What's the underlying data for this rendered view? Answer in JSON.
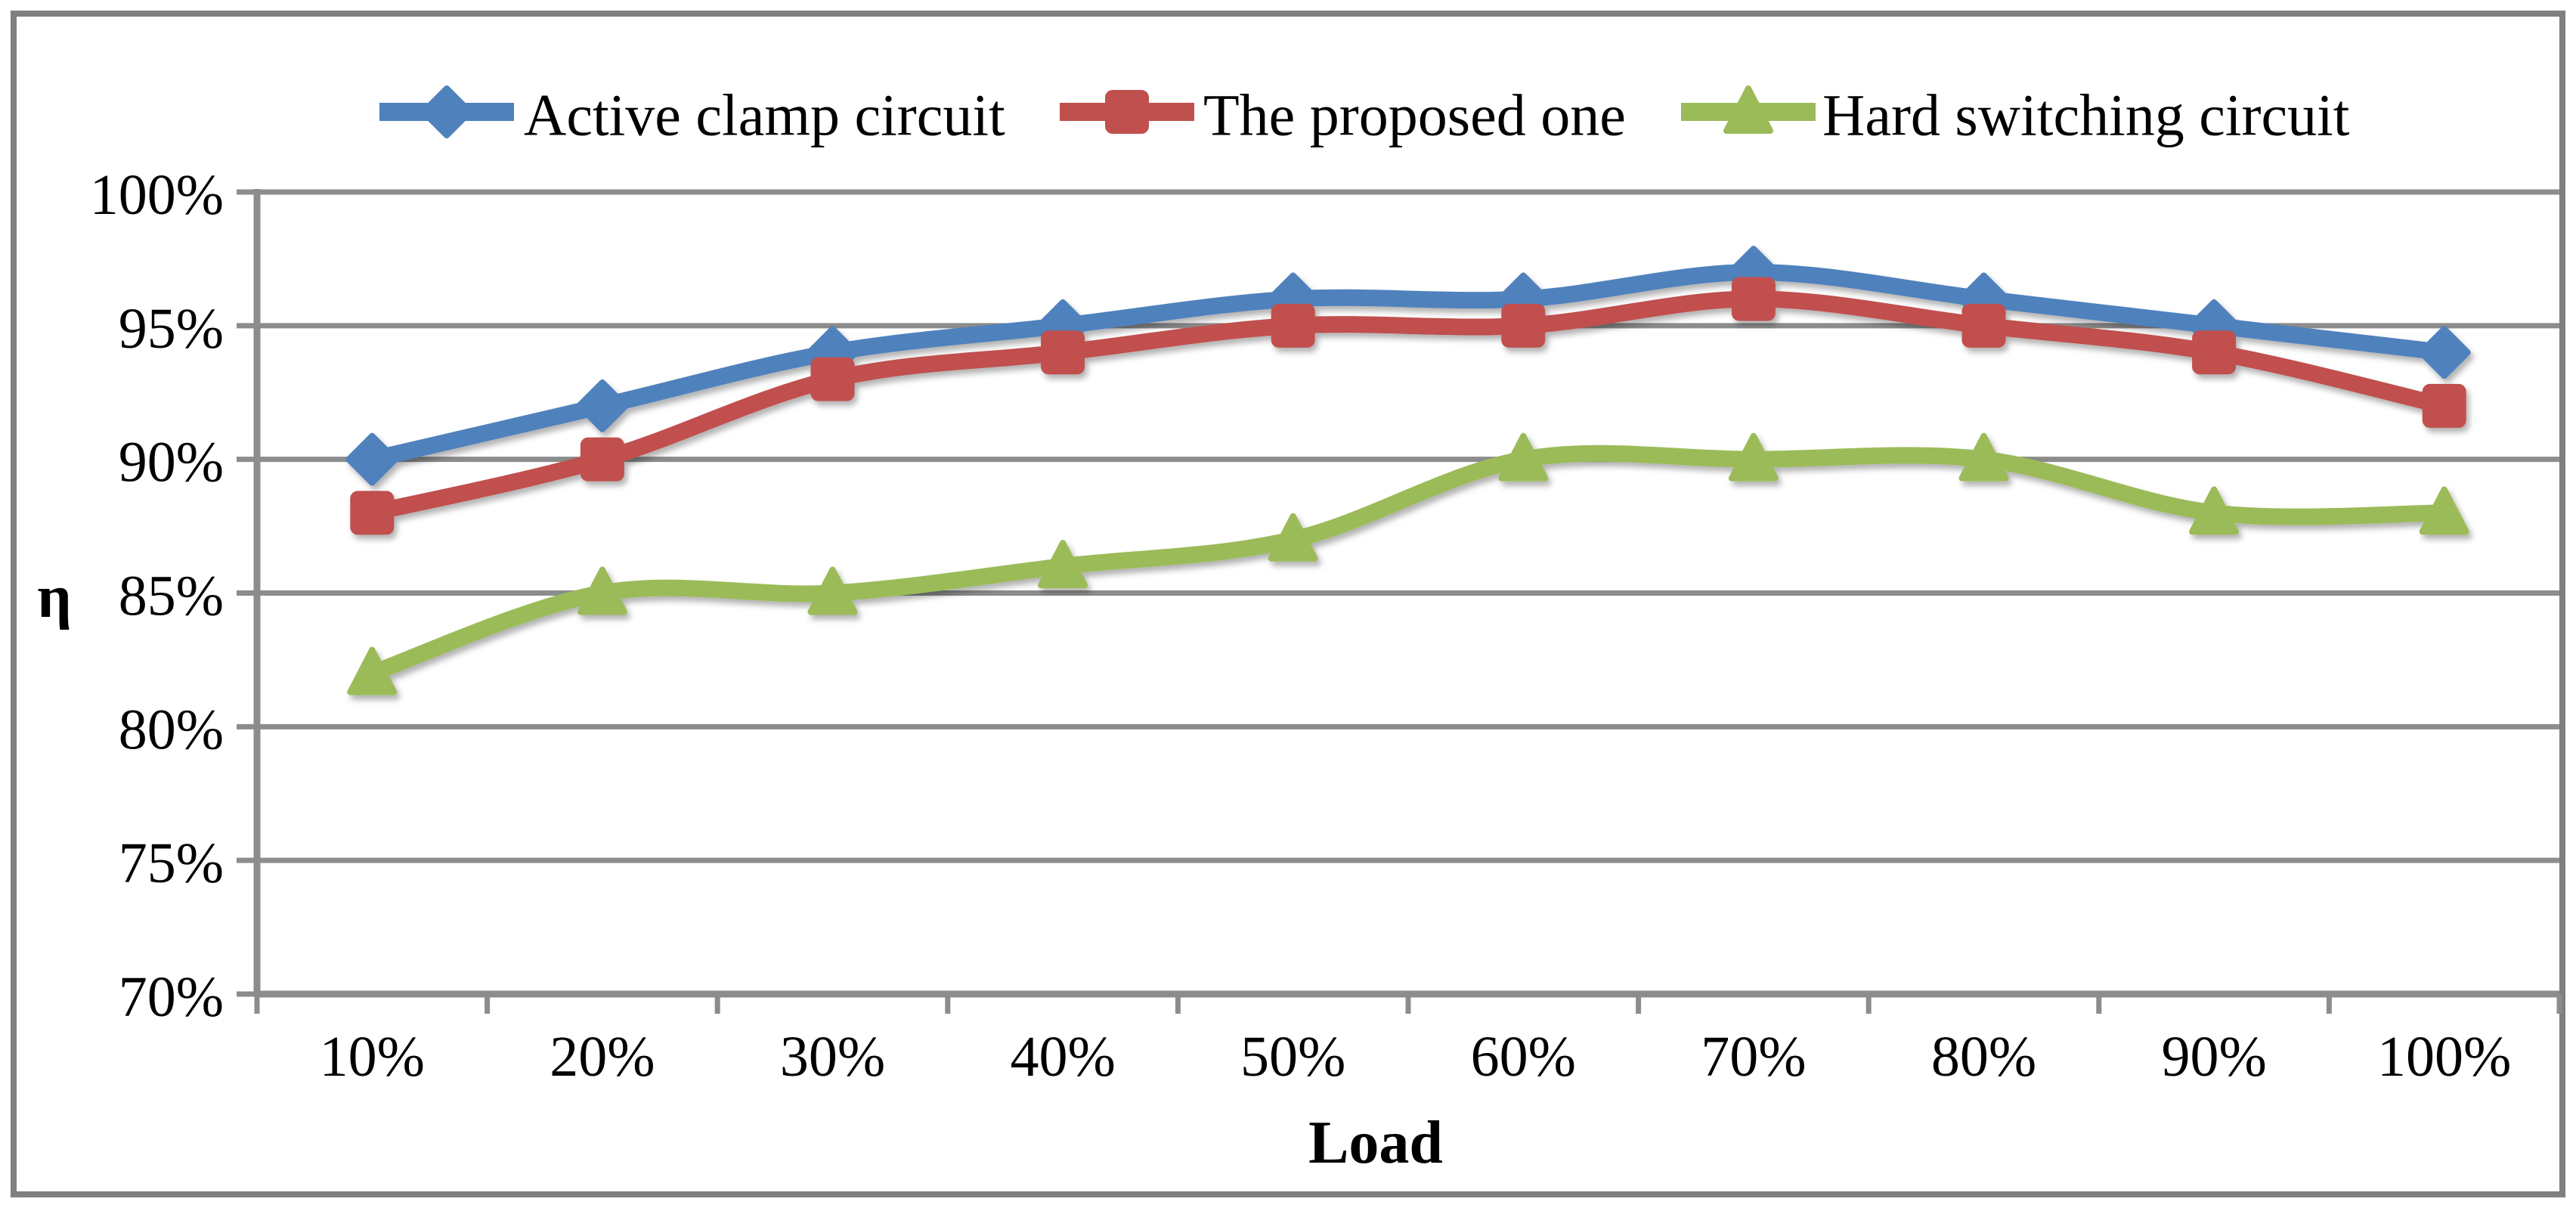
{
  "chart_data": {
    "type": "line",
    "title": "",
    "xlabel": "Load",
    "ylabel": "η",
    "x_categories": [
      "10%",
      "20%",
      "30%",
      "40%",
      "50%",
      "60%",
      "70%",
      "80%",
      "90%",
      "100%"
    ],
    "series": [
      {
        "name": "Active clamp circuit",
        "marker": "diamond",
        "color": "#4F81BD",
        "values": [
          90,
          92,
          94,
          95,
          96,
          96,
          97,
          96,
          95,
          94
        ]
      },
      {
        "name": "The proposed one",
        "marker": "square",
        "color": "#C0504D",
        "values": [
          88,
          90,
          93,
          94,
          95,
          95,
          96,
          95,
          94,
          92
        ]
      },
      {
        "name": "Hard switching circuit",
        "marker": "triangle",
        "color": "#9BBB59",
        "values": [
          82,
          85,
          85,
          86,
          87,
          90,
          90,
          90,
          88,
          88
        ]
      }
    ],
    "y_ticks": [
      "100%",
      "95%",
      "90%",
      "85%",
      "80%",
      "75%",
      "70%"
    ],
    "y_tick_values": [
      100,
      95,
      90,
      85,
      80,
      75,
      70
    ],
    "ylim": [
      70,
      100
    ],
    "grid": "horizontal-only",
    "line_style": "smoothed",
    "legend_position": "top",
    "colors": {
      "grid": "#8C8C8C",
      "axis": "#8C8C8C",
      "frame_border": "#7F7F7F",
      "background": "#FFFFFF",
      "text": "#000000"
    }
  }
}
